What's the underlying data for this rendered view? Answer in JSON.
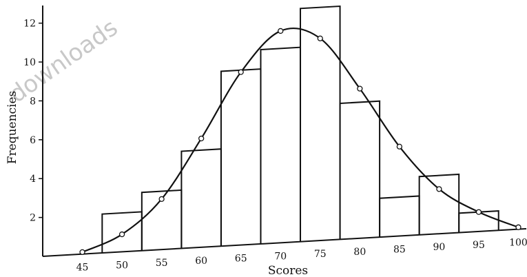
{
  "watermark": "downloads",
  "chart_data": {
    "type": "histogram_with_curve",
    "title": "",
    "xlabel": "Scores",
    "ylabel": "Frequencies",
    "x_ticks": [
      45,
      50,
      55,
      60,
      65,
      70,
      75,
      80,
      85,
      90,
      95,
      100
    ],
    "y_ticks": [
      2,
      4,
      6,
      8,
      10,
      12
    ],
    "xlim": [
      40,
      101
    ],
    "ylim": [
      0,
      12.6
    ],
    "histogram": {
      "bin_edges": [
        47.5,
        52.5,
        57.5,
        62.5,
        67.5,
        72.5,
        77.5,
        82.5,
        87.5,
        92.5,
        97.5
      ],
      "frequencies": [
        2,
        3,
        5,
        9,
        10,
        12,
        7,
        2,
        3,
        1
      ]
    },
    "curve_points": {
      "x": [
        45,
        50,
        55,
        60,
        65,
        70,
        75,
        80,
        85,
        90,
        95,
        100
      ],
      "y": [
        0.1,
        0.9,
        2.6,
        5.6,
        8.9,
        10.9,
        10.4,
        7.7,
        4.6,
        2.3,
        1.0,
        0.1
      ]
    }
  }
}
